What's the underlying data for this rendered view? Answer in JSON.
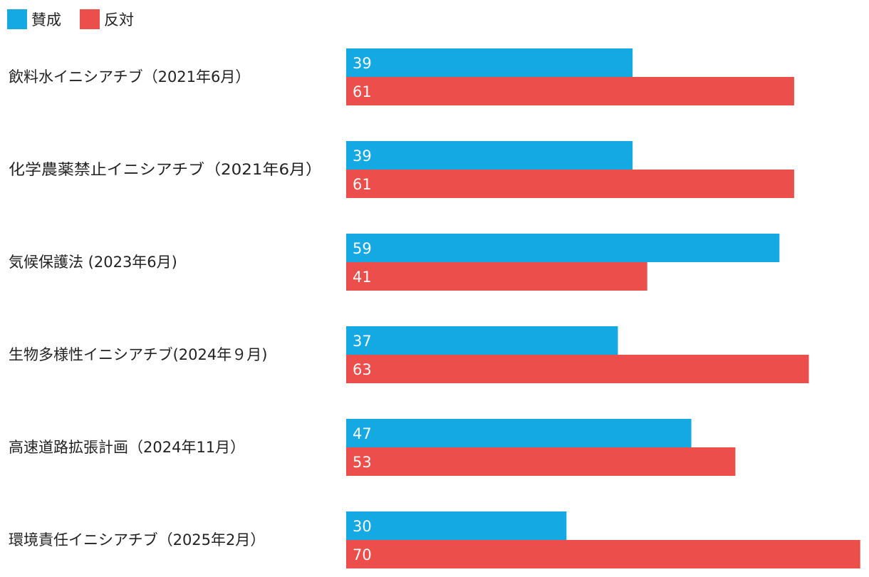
{
  "chart_data": {
    "type": "bar",
    "orientation": "horizontal",
    "categories": [
      "飲料水イニシアチブ（2021年6月）",
      "化学農薬禁止イニシアチブ（2021年6月）",
      "気候保護法 (2023年6月)",
      "生物多様性イニシアチブ(2024年９月)",
      "高速道路拡張計画（2024年11月）",
      "環境責任イニシアチブ（2025年2月）"
    ],
    "series": [
      {
        "name": "賛成",
        "color": "#14a9e3",
        "values": [
          39,
          39,
          59,
          37,
          47,
          30
        ]
      },
      {
        "name": "反対",
        "color": "#eb4e4b",
        "values": [
          61,
          61,
          41,
          63,
          53,
          70
        ]
      }
    ],
    "title": "",
    "xlabel": "",
    "ylabel": "",
    "xlim": [
      0,
      70
    ],
    "grid": false,
    "legend_position": "top-left",
    "value_labels": true
  }
}
